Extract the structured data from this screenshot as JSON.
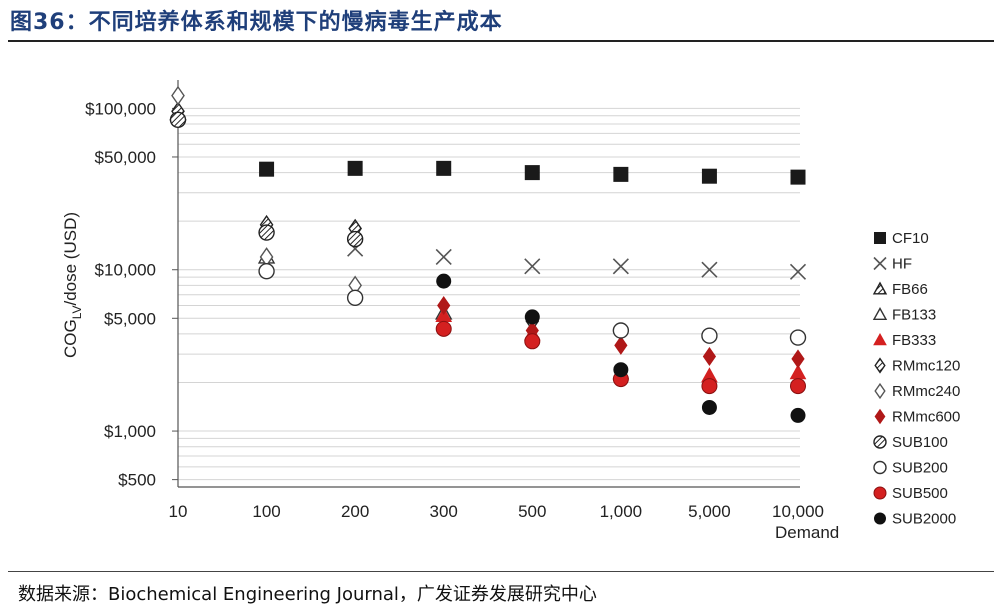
{
  "figure": {
    "title": "图36：不同培养体系和规模下的慢病毒生产成本",
    "source": "数据来源：Biochemical Engineering Journal，广发证券发展研究中心"
  },
  "chart_data": {
    "type": "scatter",
    "title": "",
    "xlabel": "Demand",
    "ylabel": "COG",
    "ylabel_sub": "LV",
    "ylabel_tail": "/dose (USD)",
    "y_scale": "log",
    "ylim": [
      450,
      150000
    ],
    "y_ticks": [
      {
        "value": 100000,
        "label": "$100,000"
      },
      {
        "value": 50000,
        "label": "$50,000"
      },
      {
        "value": 10000,
        "label": "$10,000"
      },
      {
        "value": 5000,
        "label": "$5,000"
      },
      {
        "value": 1000,
        "label": "$1,000"
      },
      {
        "value": 500,
        "label": "$500"
      }
    ],
    "categories": [
      "10",
      "100",
      "200",
      "300",
      "500",
      "1,000",
      "5,000",
      "10,000"
    ],
    "grid": true,
    "legend_position": "right",
    "series": [
      {
        "name": "CF10",
        "marker": "square",
        "color": "#1a1a1a",
        "values": [
          null,
          42000,
          42500,
          42500,
          40000,
          39000,
          38000,
          37500
        ]
      },
      {
        "name": "HF",
        "marker": "x",
        "color": "#555555",
        "values": [
          null,
          null,
          13500,
          12000,
          10500,
          10500,
          10000,
          9700
        ]
      },
      {
        "name": "FB66",
        "marker": "hatch-triangle",
        "color": "#333333",
        "values": [
          93000,
          null,
          null,
          null,
          null,
          null,
          null,
          null
        ]
      },
      {
        "name": "FB133",
        "marker": "open-triangle",
        "color": "#333333",
        "values": [
          null,
          12000,
          null,
          5400,
          null,
          null,
          null,
          null
        ]
      },
      {
        "name": "FB333",
        "marker": "red-triangle",
        "color": "#d42020",
        "values": [
          null,
          null,
          null,
          5200,
          4000,
          2300,
          2200,
          2300
        ]
      },
      {
        "name": "RMmc120",
        "marker": "hatch-diamond",
        "color": "#333333",
        "values": [
          96000,
          19000,
          18000,
          null,
          4800,
          null,
          null,
          null
        ]
      },
      {
        "name": "RMmc240",
        "marker": "open-diamond",
        "color": "#555555",
        "values": [
          120000,
          12000,
          8000,
          null,
          null,
          null,
          null,
          null
        ]
      },
      {
        "name": "RMmc600",
        "marker": "red-diamond",
        "color": "#b01818",
        "values": [
          null,
          null,
          null,
          6000,
          4200,
          3400,
          2900,
          2800
        ]
      },
      {
        "name": "SUB100",
        "marker": "hatch-circle",
        "color": "#333333",
        "values": [
          85000,
          17000,
          15500,
          null,
          null,
          null,
          null,
          null
        ]
      },
      {
        "name": "SUB200",
        "marker": "open-circle",
        "color": "#333333",
        "values": [
          null,
          9800,
          6700,
          null,
          null,
          4200,
          3900,
          3800
        ]
      },
      {
        "name": "SUB500",
        "marker": "red-circle",
        "color": "#d42020",
        "values": [
          null,
          null,
          null,
          4300,
          3600,
          2100,
          1900,
          1900
        ]
      },
      {
        "name": "SUB2000",
        "marker": "black-circle",
        "color": "#111111",
        "values": [
          null,
          null,
          null,
          8500,
          5100,
          2400,
          1400,
          1250
        ]
      }
    ]
  }
}
